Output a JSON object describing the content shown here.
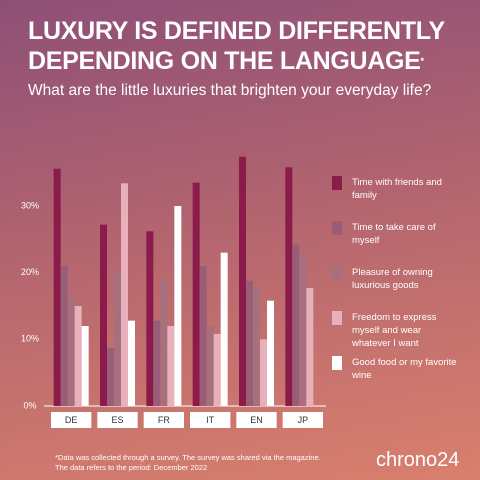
{
  "chart_data": {
    "type": "bar",
    "title": [
      "LUXURY IS DEFINED DIFFERENTLY",
      "DEPENDING ON THE LANGUAGE"
    ],
    "title_mark": "*",
    "subtitle": "What are the little luxuries that brighten your everyday life?",
    "categories": [
      "DE",
      "ES",
      "FR",
      "IT",
      "EN",
      "JP"
    ],
    "series": [
      {
        "name": "Time with friends and family",
        "color": "#8a1b4b",
        "values": [
          35.6,
          27.2,
          26.2,
          33.5,
          37.4,
          35.8
        ]
      },
      {
        "name": "Time to take care of myself",
        "color": "#9a5d77",
        "values": [
          21,
          8.7,
          12.8,
          21,
          18.8,
          24.2
        ]
      },
      {
        "name": "Pleasure of owning luxurious goods",
        "color": "#a86f7c",
        "values": [
          17,
          20,
          19,
          12,
          17.9,
          23
        ]
      },
      {
        "name": "Freedom to express myself and wear whatever I want",
        "color": "#e8b0bb",
        "values": [
          15,
          33.4,
          12,
          10.8,
          10,
          17.7
        ]
      },
      {
        "name": "Good food or my favorite wine",
        "color": "#ffffff",
        "values": [
          12,
          12.8,
          30,
          23,
          15.8,
          null
        ]
      }
    ],
    "ylim": [
      0,
      39
    ],
    "yticks": [
      {
        "value": 0,
        "label": "0%"
      },
      {
        "value": 10,
        "label": "10%"
      },
      {
        "value": 20,
        "label": "20%"
      },
      {
        "value": 30,
        "label": "30%"
      }
    ],
    "footnote": [
      "*Data was collected through a survey. The survey was shared via the magazine.",
      "The data refers to the period: December 2022"
    ],
    "logo": "chrono24"
  }
}
